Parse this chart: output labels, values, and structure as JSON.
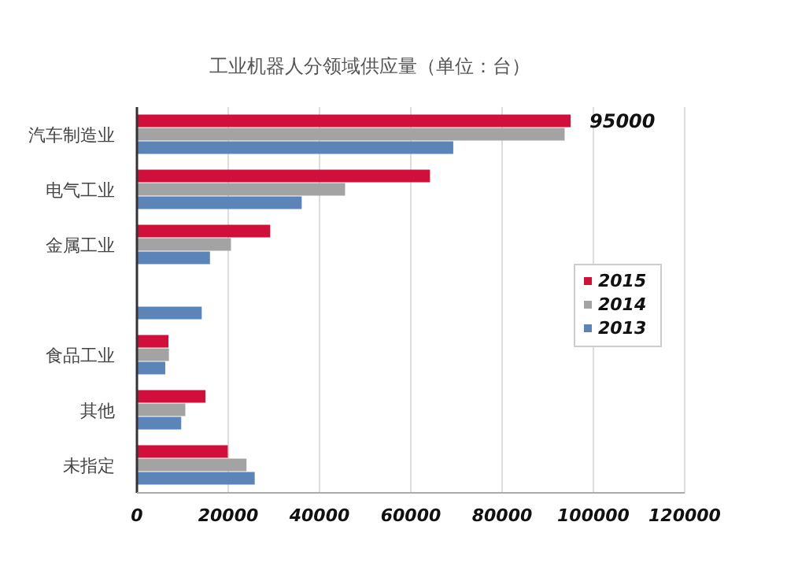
{
  "chart_data": {
    "type": "bar",
    "orientation": "horizontal",
    "title": "工业机器人分领域供应量（单位：台）",
    "categories": [
      "汽车制造业",
      "电气工业",
      "金属工业",
      null,
      "食品工业",
      "其他",
      "未指定"
    ],
    "series": [
      {
        "name": "2015",
        "color": "#d0103a",
        "values": [
          95000,
          64200,
          29200,
          null,
          6900,
          15000,
          19900
        ],
        "value_labels": [
          "95000",
          null,
          null,
          null,
          null,
          null,
          null
        ]
      },
      {
        "name": "2014",
        "color": "#a3a3a3",
        "values": [
          93700,
          45600,
          20600,
          null,
          7000,
          10600,
          24000
        ]
      },
      {
        "name": "2013",
        "color": "#5b85b8",
        "values": [
          69300,
          36100,
          16000,
          14200,
          6200,
          9700,
          25800
        ]
      }
    ],
    "xlim": [
      0,
      120000
    ],
    "xticks": [
      0,
      20000,
      40000,
      60000,
      80000,
      100000,
      120000
    ],
    "grid": "x",
    "legend": "right"
  }
}
